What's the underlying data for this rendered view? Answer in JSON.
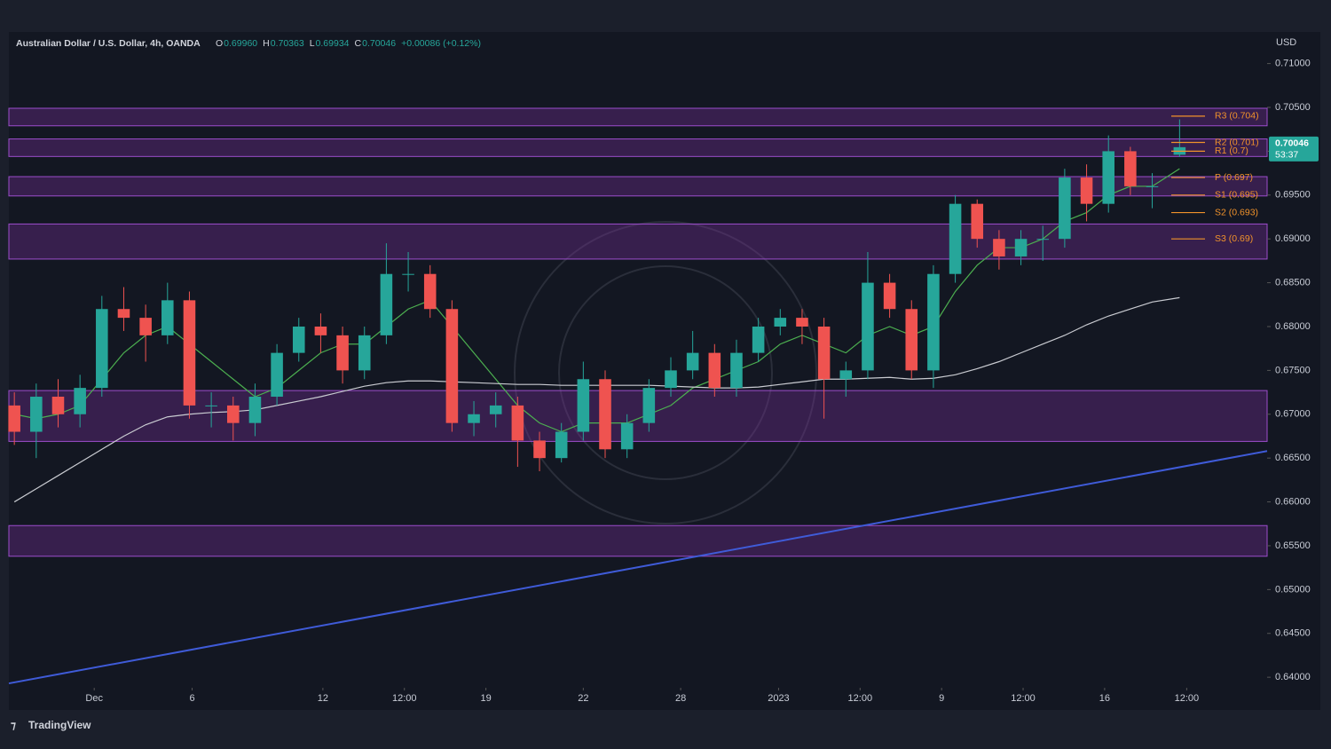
{
  "chart_data": {
    "type": "candlestick",
    "title": "Australian Dollar / U.S. Dollar, 4h, OANDA",
    "ohlc_header": [
      {
        "key": "O",
        "text": "0.69960"
      },
      {
        "key": "H",
        "text": "0.70363"
      },
      {
        "key": "L",
        "text": "0.69934"
      },
      {
        "key": "C",
        "text": "0.70046"
      }
    ],
    "change": "+0.00086 (+0.12%)",
    "currency": "USD",
    "countdown": "53:37",
    "up_color": "#26a69a",
    "down_color": "#ef5350",
    "x": [
      1,
      5,
      9,
      13,
      17,
      21,
      25,
      29,
      33,
      37,
      41,
      45,
      49,
      53,
      57,
      61,
      65,
      69,
      73,
      77,
      81,
      85,
      89,
      93,
      97,
      101,
      105,
      109,
      113,
      117,
      121,
      125,
      129,
      133,
      137,
      141,
      145,
      149,
      153,
      157,
      161,
      165,
      169,
      173,
      177,
      181,
      185,
      189,
      193,
      197,
      201,
      205,
      209,
      214
    ],
    "open": [
      0.671,
      0.668,
      0.672,
      0.67,
      0.673,
      0.682,
      0.681,
      0.679,
      0.683,
      0.671,
      0.671,
      0.669,
      0.672,
      0.677,
      0.68,
      0.679,
      0.675,
      0.679,
      0.686,
      0.686,
      0.682,
      0.669,
      0.67,
      0.671,
      0.667,
      0.665,
      0.668,
      0.674,
      0.666,
      0.669,
      0.673,
      0.675,
      0.677,
      0.673,
      0.677,
      0.68,
      0.681,
      0.68,
      0.674,
      0.675,
      0.685,
      0.682,
      0.675,
      0.686,
      0.694,
      0.69,
      0.688,
      0.69,
      0.69,
      0.697,
      0.694,
      0.7,
      0.696,
      0.6996
    ],
    "high": [
      0.6725,
      0.6735,
      0.674,
      0.6745,
      0.6835,
      0.6845,
      0.6825,
      0.685,
      0.684,
      0.6725,
      0.672,
      0.6735,
      0.678,
      0.681,
      0.6815,
      0.68,
      0.68,
      0.6895,
      0.6885,
      0.687,
      0.683,
      0.6715,
      0.6725,
      0.672,
      0.668,
      0.669,
      0.676,
      0.675,
      0.67,
      0.674,
      0.6765,
      0.6795,
      0.678,
      0.6785,
      0.681,
      0.682,
      0.682,
      0.681,
      0.676,
      0.6885,
      0.686,
      0.683,
      0.687,
      0.695,
      0.6945,
      0.691,
      0.691,
      0.6915,
      0.698,
      0.6985,
      0.7018,
      0.7005,
      0.6975,
      0.70363
    ],
    "low": [
      0.6665,
      0.665,
      0.6685,
      0.6685,
      0.672,
      0.6795,
      0.676,
      0.678,
      0.6695,
      0.6685,
      0.667,
      0.6675,
      0.671,
      0.676,
      0.677,
      0.6735,
      0.674,
      0.678,
      0.684,
      0.681,
      0.668,
      0.6675,
      0.6685,
      0.664,
      0.6635,
      0.6645,
      0.667,
      0.665,
      0.665,
      0.668,
      0.672,
      0.674,
      0.672,
      0.672,
      0.676,
      0.679,
      0.678,
      0.6695,
      0.672,
      0.674,
      0.681,
      0.674,
      0.673,
      0.685,
      0.689,
      0.6865,
      0.687,
      0.6875,
      0.689,
      0.692,
      0.693,
      0.695,
      0.6935,
      0.69934
    ],
    "close": [
      0.668,
      0.672,
      0.67,
      0.673,
      0.682,
      0.681,
      0.679,
      0.683,
      0.671,
      0.671,
      0.669,
      0.672,
      0.677,
      0.68,
      0.679,
      0.675,
      0.679,
      0.686,
      0.686,
      0.682,
      0.669,
      0.67,
      0.671,
      0.667,
      0.665,
      0.668,
      0.674,
      0.666,
      0.669,
      0.673,
      0.675,
      0.677,
      0.673,
      0.677,
      0.68,
      0.681,
      0.68,
      0.674,
      0.675,
      0.685,
      0.682,
      0.675,
      0.686,
      0.694,
      0.69,
      0.688,
      0.69,
      0.69,
      0.697,
      0.694,
      0.7,
      0.696,
      0.696,
      0.70046
    ],
    "moving_averages": [
      {
        "color": "#4caf50",
        "values": [
          0.67,
          0.6695,
          0.67,
          0.671,
          0.674,
          0.677,
          0.679,
          0.68,
          0.678,
          0.676,
          0.674,
          0.672,
          0.673,
          0.675,
          0.677,
          0.678,
          0.678,
          0.68,
          0.682,
          0.683,
          0.68,
          0.677,
          0.674,
          0.671,
          0.669,
          0.668,
          0.669,
          0.669,
          0.669,
          0.67,
          0.671,
          0.673,
          0.674,
          0.675,
          0.676,
          0.678,
          0.679,
          0.678,
          0.677,
          0.679,
          0.68,
          0.679,
          0.68,
          0.684,
          0.687,
          0.689,
          0.689,
          0.69,
          0.692,
          0.693,
          0.695,
          0.696,
          0.696,
          0.698
        ]
      },
      {
        "color": "#c9cbd1",
        "values": [
          0.66,
          0.6615,
          0.663,
          0.6645,
          0.666,
          0.6675,
          0.6688,
          0.6697,
          0.67,
          0.6702,
          0.6703,
          0.6705,
          0.671,
          0.6715,
          0.672,
          0.6726,
          0.6732,
          0.6736,
          0.6738,
          0.6738,
          0.6737,
          0.6736,
          0.6735,
          0.6734,
          0.6734,
          0.6733,
          0.6733,
          0.6733,
          0.6733,
          0.6733,
          0.6732,
          0.6731,
          0.673,
          0.673,
          0.6731,
          0.6734,
          0.6737,
          0.674,
          0.674,
          0.6741,
          0.6742,
          0.674,
          0.6741,
          0.6745,
          0.6752,
          0.676,
          0.677,
          0.678,
          0.679,
          0.6802,
          0.6812,
          0.682,
          0.6828,
          0.6833
        ]
      }
    ],
    "trendline": {
      "color": "#3f5bd8",
      "x": [
        0,
        230
      ],
      "values": [
        0.6393,
        0.6658
      ]
    },
    "zone_color": "#7b2f9e",
    "zones": [
      [
        0.7029,
        0.7049
      ],
      [
        0.6994,
        0.7014
      ],
      [
        0.6949,
        0.6971
      ],
      [
        0.6877,
        0.6917
      ],
      [
        0.6669,
        0.6727
      ],
      [
        0.6538,
        0.6573
      ]
    ],
    "pivot_color": "#f0922b",
    "pivots": [
      {
        "label": "R3 (0.704)",
        "value": 0.704
      },
      {
        "label": "R2 (0.701)",
        "value": 0.701
      },
      {
        "label": "R1 (0.7)",
        "value": 0.7
      },
      {
        "label": "P (0.697)",
        "value": 0.697
      },
      {
        "label": "S1 (0.695)",
        "value": 0.695
      },
      {
        "label": "S2 (0.693)",
        "value": 0.693
      },
      {
        "label": "S3 (0.69)",
        "value": 0.69
      }
    ],
    "xlim": [
      0,
      230
    ],
    "ylim": [
      0.6388,
      0.7132
    ],
    "xticks": [
      {
        "value": 15.6,
        "label": "Dec"
      },
      {
        "value": 33.5,
        "label": "6"
      },
      {
        "value": 57.4,
        "label": "12"
      },
      {
        "value": 72.3,
        "label": "12:00"
      },
      {
        "value": 87.2,
        "label": "19"
      },
      {
        "value": 105,
        "label": "22"
      },
      {
        "value": 122.8,
        "label": "28"
      },
      {
        "value": 140.7,
        "label": "2023"
      },
      {
        "value": 155.6,
        "label": "12:00"
      },
      {
        "value": 170.5,
        "label": "9"
      },
      {
        "value": 185.4,
        "label": "12:00"
      },
      {
        "value": 200.3,
        "label": "16"
      },
      {
        "value": 215.3,
        "label": "12:00"
      }
    ],
    "yticks": [
      {
        "value": 0.64,
        "label": "0.64000"
      },
      {
        "value": 0.645,
        "label": "0.64500"
      },
      {
        "value": 0.65,
        "label": "0.65000"
      },
      {
        "value": 0.655,
        "label": "0.65500"
      },
      {
        "value": 0.66,
        "label": "0.66000"
      },
      {
        "value": 0.665,
        "label": "0.66500"
      },
      {
        "value": 0.67,
        "label": "0.67000"
      },
      {
        "value": 0.675,
        "label": "0.67500"
      },
      {
        "value": 0.68,
        "label": "0.68000"
      },
      {
        "value": 0.685,
        "label": "0.68500"
      },
      {
        "value": 0.69,
        "label": "0.69000"
      },
      {
        "value": 0.695,
        "label": "0.69500"
      },
      {
        "value": 0.7,
        "label": "0.70000"
      },
      {
        "value": 0.705,
        "label": "0.70500"
      },
      {
        "value": 0.71,
        "label": "0.71000"
      }
    ]
  },
  "footer": {
    "brand": "TradingView"
  }
}
